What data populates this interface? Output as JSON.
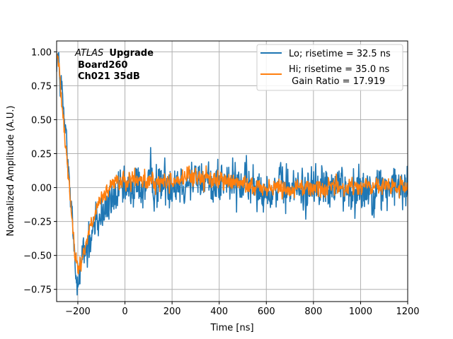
{
  "chart_data": {
    "type": "line",
    "xlabel": "Time [ns]",
    "ylabel": "Normalized Amplitude (A.U.)",
    "xlim": [
      -290,
      1200
    ],
    "ylim": [
      -0.84,
      1.08
    ],
    "grid": true,
    "x_ticks": [
      -200,
      0,
      200,
      400,
      600,
      800,
      1000,
      1200
    ],
    "y_ticks": [
      -0.75,
      -0.5,
      -0.25,
      0.0,
      0.25,
      0.5,
      0.75,
      1.0
    ],
    "x_tick_labels": [
      "−200",
      "0",
      "200",
      "400",
      "600",
      "800",
      "1000",
      "1200"
    ],
    "y_tick_labels": [
      "−0.75",
      "−0.50",
      "−0.25",
      "0.00",
      "0.25",
      "0.50",
      "0.75",
      "1.00"
    ],
    "annotation": {
      "experiment": "ATLAS",
      "status": "Upgrade",
      "board": "Board260",
      "channel": "Ch021 35dB"
    },
    "legend": {
      "position": "top-right",
      "entries": [
        {
          "label": "Lo; risetime = 32.5 ns"
        },
        {
          "label": "Hi; risetime = 35.0 ns"
        },
        {
          "label": " Gain Ratio = 17.919"
        }
      ]
    },
    "series": [
      {
        "name": "Lo",
        "color": "#1f77b4",
        "noise": 0.1,
        "x": [
          -290,
          -280,
          -270,
          -260,
          -250,
          -240,
          -230,
          -220,
          -210,
          -200,
          -190,
          -180,
          -170,
          -160,
          -150,
          -140,
          -130,
          -120,
          -110,
          -100,
          -90,
          -80,
          -70,
          -60,
          -50,
          -40,
          -20,
          0,
          20,
          50,
          100,
          150,
          200,
          250,
          300,
          350,
          400,
          450,
          500,
          600,
          700,
          800,
          900,
          1000,
          1100,
          1200
        ],
        "y": [
          1.0,
          0.9,
          0.72,
          0.52,
          0.32,
          0.12,
          -0.12,
          -0.35,
          -0.55,
          -0.63,
          -0.6,
          -0.54,
          -0.48,
          -0.42,
          -0.38,
          -0.33,
          -0.3,
          -0.27,
          -0.24,
          -0.21,
          -0.18,
          -0.15,
          -0.13,
          -0.11,
          -0.09,
          -0.07,
          -0.05,
          -0.03,
          -0.02,
          0.0,
          0.02,
          0.03,
          0.04,
          0.05,
          0.05,
          0.05,
          0.04,
          0.03,
          0.02,
          0.0,
          -0.01,
          -0.01,
          0.0,
          0.0,
          0.0,
          0.0
        ]
      },
      {
        "name": "Hi",
        "color": "#ff7f0e",
        "noise": 0.04,
        "x": [
          -290,
          -280,
          -270,
          -260,
          -250,
          -240,
          -230,
          -220,
          -210,
          -200,
          -190,
          -180,
          -170,
          -160,
          -150,
          -140,
          -130,
          -120,
          -110,
          -100,
          -90,
          -80,
          -70,
          -60,
          -50,
          -40,
          -20,
          0,
          20,
          50,
          100,
          150,
          200,
          250,
          300,
          350,
          400,
          450,
          500,
          600,
          700,
          800,
          900,
          1000,
          1100,
          1200
        ],
        "y": [
          1.0,
          0.88,
          0.7,
          0.5,
          0.3,
          0.1,
          -0.12,
          -0.35,
          -0.52,
          -0.6,
          -0.58,
          -0.5,
          -0.43,
          -0.37,
          -0.31,
          -0.26,
          -0.21,
          -0.17,
          -0.13,
          -0.1,
          -0.07,
          -0.04,
          -0.02,
          0.0,
          0.02,
          0.03,
          0.04,
          0.05,
          0.05,
          0.05,
          0.04,
          0.04,
          0.05,
          0.07,
          0.08,
          0.07,
          0.06,
          0.04,
          0.02,
          0.0,
          0.0,
          0.0,
          0.0,
          0.01,
          0.0,
          0.0
        ]
      }
    ]
  }
}
